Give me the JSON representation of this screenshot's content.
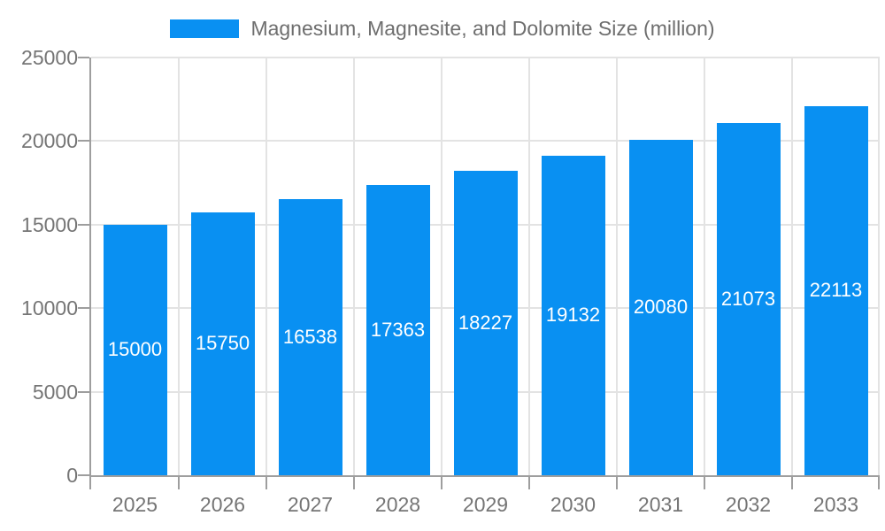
{
  "chart_data": {
    "type": "bar",
    "title": "Magnesium, Magnesite, and Dolomite Size (million)",
    "categories": [
      "2025",
      "2026",
      "2027",
      "2028",
      "2029",
      "2030",
      "2031",
      "2032",
      "2033"
    ],
    "values": [
      15000,
      15750,
      16538,
      17363,
      18227,
      19132,
      20080,
      21073,
      22113
    ],
    "bar_value_labels": [
      "15000",
      "15750",
      "16538",
      "17363",
      "18227",
      "19132",
      "20080",
      "21073",
      "22113"
    ],
    "ylim": [
      0,
      25000
    ],
    "yticks": [
      0,
      5000,
      10000,
      15000,
      20000,
      25000
    ],
    "ytick_labels": [
      "0",
      "5000",
      "10000",
      "15000",
      "20000",
      "25000"
    ],
    "xlabel": "",
    "ylabel": "",
    "grid": true,
    "legend_position": "top",
    "colors": {
      "bar": "#0990f2",
      "bar_label_text": "#ffffff",
      "axis_line": "#9e9e9e",
      "gridline": "#e3e3e3",
      "tick_text": "#757575",
      "legend_text": "#6e6e6e"
    }
  }
}
